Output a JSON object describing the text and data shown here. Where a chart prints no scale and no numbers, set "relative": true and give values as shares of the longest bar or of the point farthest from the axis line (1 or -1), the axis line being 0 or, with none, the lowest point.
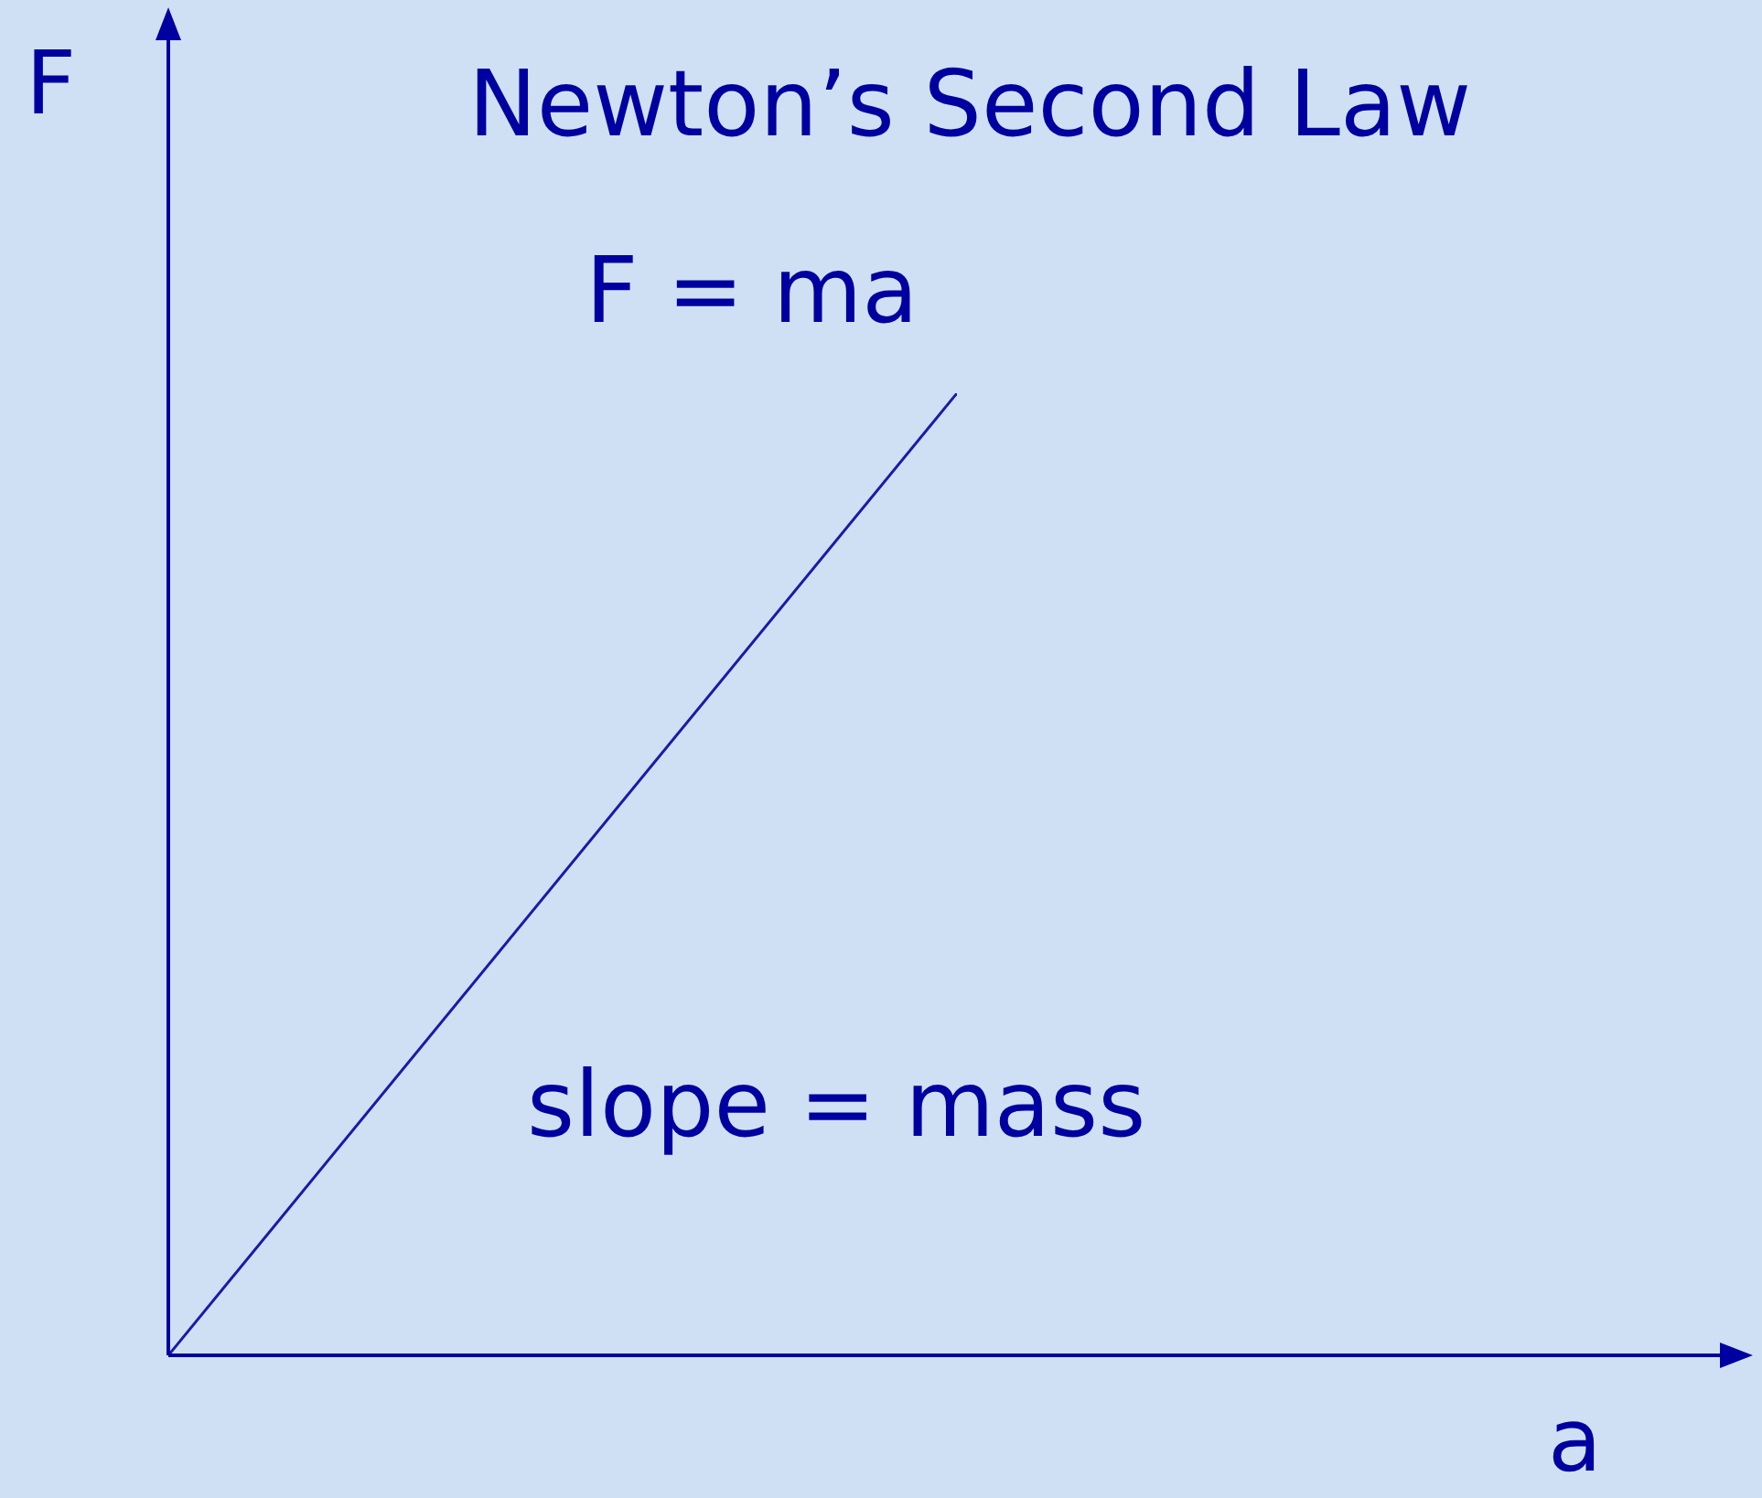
{
  "chart_data": {
    "type": "line",
    "title": "Newton’s Second Law",
    "xlabel": "a",
    "ylabel": "F",
    "relative": true,
    "categories": [
      null,
      null
    ],
    "series": [
      {
        "color": "#1a1aa8",
        "values": [
          0,
          1
        ]
      }
    ],
    "annotations": [
      "F = ma",
      "slope = mass"
    ],
    "grid": false,
    "legend": false
  }
}
